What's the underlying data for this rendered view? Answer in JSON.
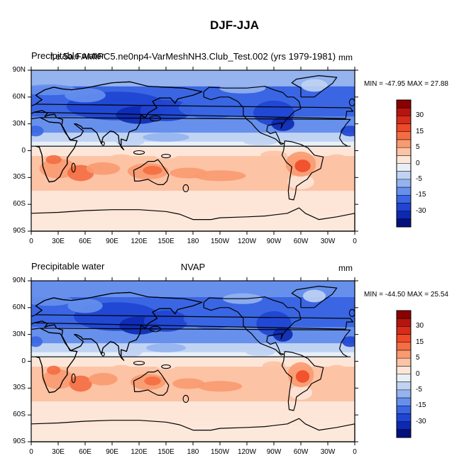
{
  "page_title": "DJF-JJA",
  "panels": [
    {
      "left_title": "Precipitable water",
      "center_title": "f.e.5a.FAMIPC5.ne0np4-VarMeshNH3.Club_Test.002 (yrs 1979-1981)",
      "units": "mm",
      "stats": "MIN = -47.95 MAX =  27.88"
    },
    {
      "left_title": "Precipitable water",
      "center_title": "NVAP",
      "units": "mm",
      "stats": "MIN = -44.50 MAX =  25.54"
    }
  ],
  "lat_labels": [
    "90N",
    "60N",
    "30N",
    "0",
    "30S",
    "60S",
    "90S"
  ],
  "lon_labels": [
    "0",
    "30E",
    "60E",
    "90E",
    "120E",
    "150E",
    "180",
    "150W",
    "120W",
    "90W",
    "60W",
    "30W",
    "0"
  ],
  "colorbar": {
    "labels": [
      "30",
      "15",
      "5",
      "0",
      "-5",
      "-15",
      "-30"
    ],
    "colors": [
      "#8b0000",
      "#b5140f",
      "#d72c1a",
      "#ee4a27",
      "#f46d43",
      "#f99a70",
      "#fcc3a5",
      "#fde6d8",
      "#e8eff7",
      "#c0d3f3",
      "#94b3ef",
      "#6690ec",
      "#3a66e3",
      "#1f45d2",
      "#0c29b1",
      "#03107d"
    ]
  }
}
